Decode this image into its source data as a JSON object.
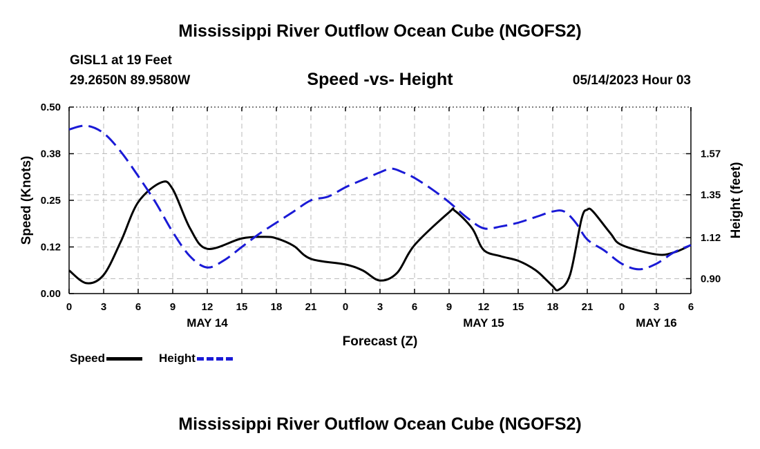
{
  "page": {
    "title": "Mississippi River Outflow Ocean Cube (NGOFS2)",
    "title_repeat": "Mississippi River Outflow Ocean Cube (NGOFS2)",
    "station": "GISL1 at 19 Feet",
    "coords": "29.2650N  89.9580W",
    "subtitle": "Speed -vs- Height",
    "datetime": "05/14/2023 Hour 03"
  },
  "chart_data": {
    "type": "line",
    "title": "Speed -vs- Height",
    "xlabel": "Forecast (Z)",
    "ylabel": "Speed (Knots)",
    "y2label": "Height (feet)",
    "x_range": [
      0,
      54
    ],
    "x_ticks": [
      0,
      3,
      6,
      9,
      12,
      15,
      18,
      21,
      24,
      27,
      30,
      33,
      36,
      39,
      42,
      45,
      48,
      51,
      54
    ],
    "x_tick_labels": [
      "0",
      "3",
      "6",
      "9",
      "12",
      "15",
      "18",
      "21",
      "0",
      "3",
      "6",
      "9",
      "12",
      "15",
      "18",
      "21",
      "0",
      "3",
      "6"
    ],
    "date_labels": [
      {
        "x": 12,
        "label": "MAY 14"
      },
      {
        "x": 36,
        "label": "MAY 15"
      },
      {
        "x": 51,
        "label": "MAY 16"
      }
    ],
    "ylim": [
      0,
      0.5
    ],
    "y_ticks": [
      0.0,
      0.125,
      0.25,
      0.375,
      0.5
    ],
    "y_tick_labels": [
      "0.00",
      "0.12",
      "0.25",
      "0.38",
      "0.50"
    ],
    "y2lim": [
      0.82,
      1.82
    ],
    "y2_ticks": [
      0.9,
      1.12,
      1.35,
      1.57
    ],
    "y2_tick_labels": [
      "0.90",
      "1.12",
      "1.35",
      "1.57"
    ],
    "grid": true,
    "series": [
      {
        "name": "Speed",
        "axis": "left",
        "color": "#000000",
        "dash": "solid",
        "x": [
          0,
          1.5,
          3,
          4.5,
          6,
          8,
          9,
          10.5,
          12,
          15,
          17,
          18,
          19.5,
          21,
          24,
          25.5,
          27,
          28.5,
          30,
          33,
          33.5,
          35,
          36,
          37.5,
          39,
          40.5,
          41.5,
          42,
          42.5,
          43.5,
          44.5,
          45,
          45.5,
          47,
          48,
          51,
          52.5,
          54
        ],
        "values": [
          0.062,
          0.028,
          0.05,
          0.14,
          0.245,
          0.298,
          0.28,
          0.175,
          0.12,
          0.148,
          0.152,
          0.148,
          0.128,
          0.093,
          0.078,
          0.062,
          0.035,
          0.056,
          0.13,
          0.218,
          0.222,
          0.175,
          0.117,
          0.1,
          0.088,
          0.063,
          0.035,
          0.02,
          0.01,
          0.05,
          0.2,
          0.225,
          0.22,
          0.162,
          0.13,
          0.105,
          0.11,
          0.13
        ]
      },
      {
        "name": "Height",
        "axis": "right",
        "color": "#1a1ad6",
        "dash": "dashed",
        "x": [
          0,
          1.5,
          3,
          4.5,
          6,
          7.5,
          9,
          10.5,
          12,
          13.5,
          15,
          16.5,
          18,
          19.5,
          21,
          22.5,
          24,
          25.5,
          27,
          28,
          29,
          30,
          31.5,
          33,
          34.5,
          36,
          37.5,
          39,
          40.5,
          42,
          43,
          44,
          45,
          46.5,
          48,
          49.5,
          51,
          52.5,
          54
        ],
        "values": [
          1.7,
          1.72,
          1.68,
          1.58,
          1.45,
          1.31,
          1.15,
          1.02,
          0.96,
          1.0,
          1.07,
          1.14,
          1.2,
          1.26,
          1.32,
          1.34,
          1.39,
          1.43,
          1.47,
          1.49,
          1.47,
          1.44,
          1.38,
          1.31,
          1.23,
          1.17,
          1.18,
          1.2,
          1.23,
          1.26,
          1.26,
          1.2,
          1.11,
          1.05,
          0.98,
          0.95,
          0.98,
          1.04,
          1.08
        ]
      }
    ],
    "legend": [
      {
        "label": "Speed",
        "color": "#000000",
        "dash": "solid"
      },
      {
        "label": "Height",
        "color": "#1a1ad6",
        "dash": "dashed"
      }
    ],
    "legend_position": "bottom-left"
  }
}
